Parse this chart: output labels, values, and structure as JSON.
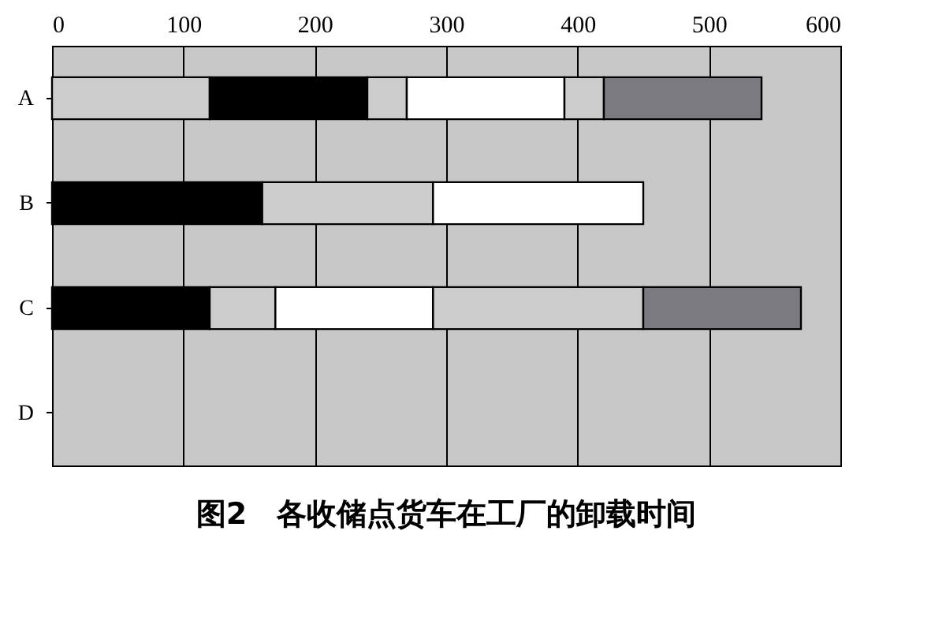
{
  "chart_data": {
    "type": "bar",
    "orientation": "horizontal",
    "stacked": true,
    "title": "图2　各收储点货车在工厂的卸载时间",
    "categories": [
      "A",
      "B",
      "C",
      "D"
    ],
    "series": [
      {
        "colors": [
          "#cccccc",
          "#000000",
          "#000000",
          null
        ],
        "values": [
          120,
          160,
          120,
          null
        ]
      },
      {
        "colors": [
          "#000000",
          "#cccccc",
          "#cccccc",
          null
        ],
        "values": [
          120,
          130,
          50,
          null
        ]
      },
      {
        "colors": [
          "#cccccc",
          "#ffffff",
          "#ffffff",
          null
        ],
        "values": [
          30,
          160,
          120,
          null
        ]
      },
      {
        "colors": [
          "#ffffff",
          null,
          "#cccccc",
          null
        ],
        "values": [
          120,
          null,
          160,
          null
        ]
      },
      {
        "colors": [
          "#cccccc",
          null,
          "#7a7a80",
          null
        ],
        "values": [
          30,
          null,
          120,
          null
        ]
      },
      {
        "colors": [
          "#7a7a80",
          null,
          null,
          null
        ],
        "values": [
          120,
          null,
          null,
          null
        ]
      }
    ],
    "xlim": [
      0,
      600
    ],
    "xticks": [
      0,
      100,
      200,
      300,
      400,
      500,
      600
    ],
    "grid": "x"
  }
}
